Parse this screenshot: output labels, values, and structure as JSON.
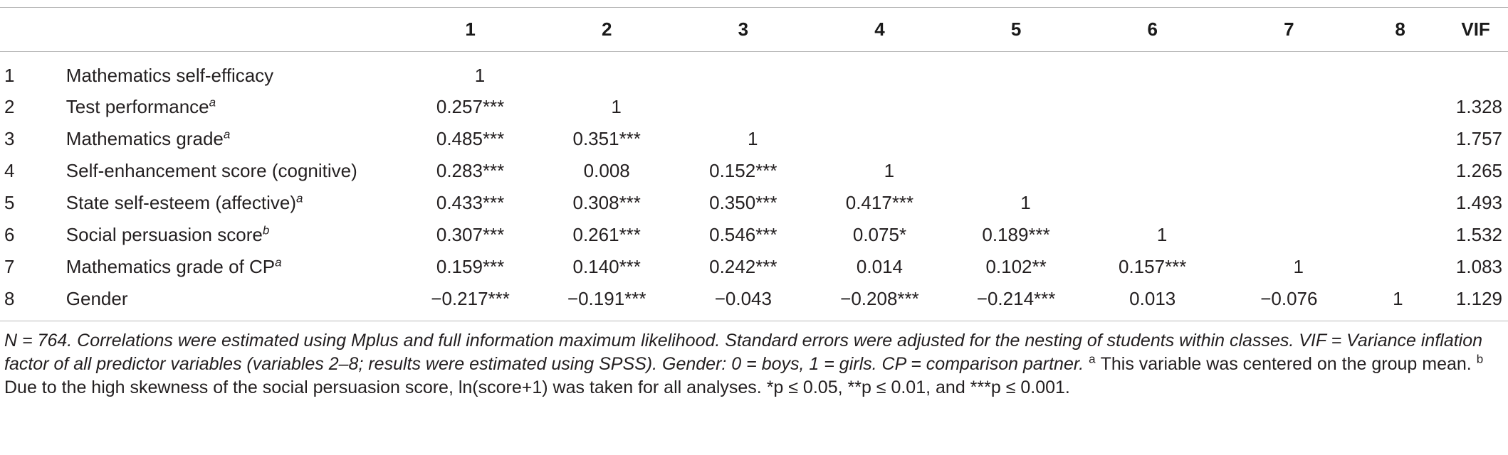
{
  "columns": [
    "1",
    "2",
    "3",
    "4",
    "5",
    "6",
    "7",
    "8",
    "VIF"
  ],
  "rows": [
    {
      "idx": "1",
      "label": "Mathematics self-efficacy",
      "sup": "",
      "cells": [
        "1",
        "",
        "",
        "",
        "",
        "",
        "",
        ""
      ],
      "vif": ""
    },
    {
      "idx": "2",
      "label": "Test performance",
      "sup": "a",
      "cells": [
        "0.257***",
        "1",
        "",
        "",
        "",
        "",
        "",
        ""
      ],
      "vif": "1.328"
    },
    {
      "idx": "3",
      "label": "Mathematics grade",
      "sup": "a",
      "cells": [
        "0.485***",
        "0.351***",
        "1",
        "",
        "",
        "",
        "",
        ""
      ],
      "vif": "1.757"
    },
    {
      "idx": "4",
      "label": "Self-enhancement score (cognitive)",
      "sup": "",
      "cells": [
        "0.283***",
        "0.008",
        "0.152***",
        "1",
        "",
        "",
        "",
        ""
      ],
      "vif": "1.265"
    },
    {
      "idx": "5",
      "label": "State self-esteem (affective)",
      "sup": "a",
      "cells": [
        "0.433***",
        "0.308***",
        "0.350***",
        "0.417***",
        "1",
        "",
        "",
        ""
      ],
      "vif": "1.493"
    },
    {
      "idx": "6",
      "label": "Social persuasion score",
      "sup": "b",
      "cells": [
        "0.307***",
        "0.261***",
        "0.546***",
        "0.075*",
        "0.189***",
        "1",
        "",
        ""
      ],
      "vif": "1.532"
    },
    {
      "idx": "7",
      "label": "Mathematics grade of CP",
      "sup": "a",
      "cells": [
        "0.159***",
        "0.140***",
        "0.242***",
        "0.014",
        "0.102**",
        "0.157***",
        "1",
        ""
      ],
      "vif": "1.083"
    },
    {
      "idx": "8",
      "label": "Gender",
      "sup": "",
      "cells": [
        "−0.217***",
        "−0.191***",
        "−0.043",
        "−0.208***",
        "−0.214***",
        "0.013",
        "−0.076",
        "1"
      ],
      "vif": "1.129"
    }
  ],
  "footnote": {
    "part1": "N = 764. Correlations were estimated using Mplus and full information maximum likelihood. Standard errors were adjusted for the nesting of students within classes. VIF = Variance inflation factor of all predictor variables (variables 2–8; results were estimated using SPSS). Gender: 0 = boys, 1 = girls. CP = comparison partner.",
    "mark_a": "a",
    "part2": "This variable was centered on the group mean.",
    "mark_b": "b",
    "part3": "Due to the high skewness of the social persuasion score, ln(score+1) was taken for all analyses. *p ≤ 0.05, **p ≤ 0.01, and ***p ≤ 0.001."
  }
}
